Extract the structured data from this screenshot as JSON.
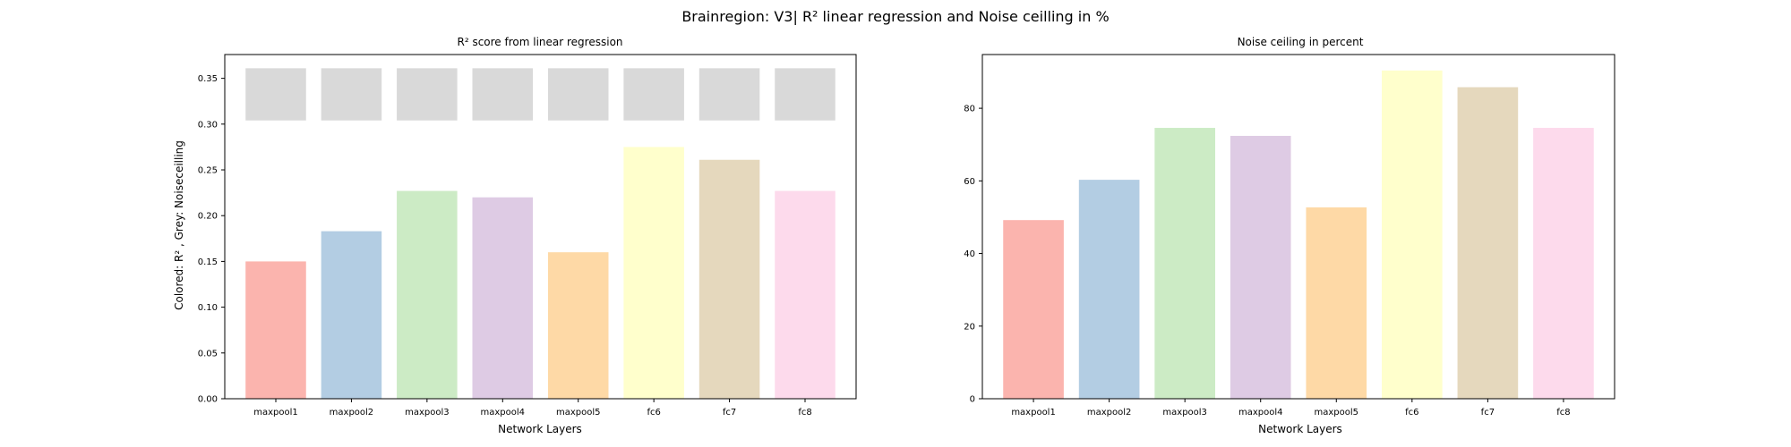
{
  "figure_title": "Brainregion: V3| R² linear regression and Noise ceilling in %",
  "chart_data": [
    {
      "type": "bar",
      "title": "R² score from linear regression",
      "xlabel": "Network Layers",
      "ylabel": "Colored: R² , Grey: Noiseceilling",
      "categories": [
        "maxpool1",
        "maxpool2",
        "maxpool3",
        "maxpool4",
        "maxpool5",
        "fc6",
        "fc7",
        "fc8"
      ],
      "series": [
        {
          "name": "R²",
          "values": [
            0.15,
            0.183,
            0.227,
            0.22,
            0.16,
            0.275,
            0.261,
            0.227
          ]
        },
        {
          "name": "Noiseceilling",
          "bottom": 0.304,
          "values": [
            0.361,
            0.361,
            0.361,
            0.361,
            0.361,
            0.361,
            0.361,
            0.361
          ],
          "color": "#d9d9d9"
        }
      ],
      "ylim": [
        0,
        0.376
      ],
      "yticks": [
        0.0,
        0.05,
        0.1,
        0.15,
        0.2,
        0.25,
        0.3,
        0.35
      ],
      "ytick_labels": [
        "0.00",
        "0.05",
        "0.10",
        "0.15",
        "0.20",
        "0.25",
        "0.30",
        "0.35"
      ],
      "colors": [
        "#fbb4ae",
        "#b3cde3",
        "#ccebc5",
        "#decbe4",
        "#fed9a6",
        "#ffffcc",
        "#e5d8bd",
        "#fddaec"
      ],
      "grid": false
    },
    {
      "type": "bar",
      "title": "Noise ceiling in percent",
      "xlabel": "Network Layers",
      "ylabel": "",
      "categories": [
        "maxpool1",
        "maxpool2",
        "maxpool3",
        "maxpool4",
        "maxpool5",
        "fc6",
        "fc7",
        "fc8"
      ],
      "series": [
        {
          "name": "Noise ceiling (%)",
          "values": [
            49.2,
            60.3,
            74.6,
            72.4,
            52.7,
            90.4,
            85.8,
            74.6
          ]
        }
      ],
      "ylim": [
        0,
        94.8
      ],
      "yticks": [
        0,
        20,
        40,
        60,
        80
      ],
      "ytick_labels": [
        "0",
        "20",
        "40",
        "60",
        "80"
      ],
      "colors": [
        "#fbb4ae",
        "#b3cde3",
        "#ccebc5",
        "#decbe4",
        "#fed9a6",
        "#ffffcc",
        "#e5d8bd",
        "#fddaec"
      ],
      "grid": false
    }
  ]
}
